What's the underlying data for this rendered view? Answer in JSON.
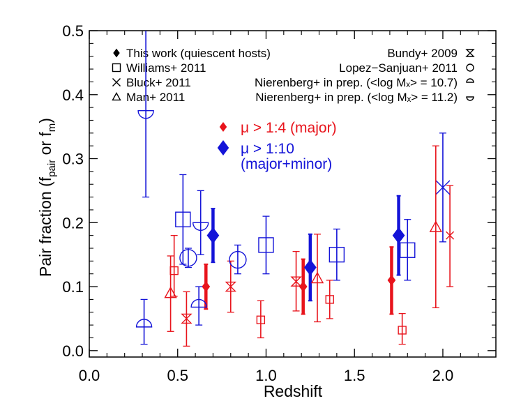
{
  "chart_data": {
    "type": "scatter",
    "xlabel": "Redshift",
    "ylabel_main": "Pair fraction (f",
    "ylabel_sub1": "pair",
    "ylabel_mid": " or f",
    "ylabel_sub2": "m",
    "ylabel_end": ")",
    "xlim": [
      0.0,
      2.3
    ],
    "ylim": [
      -0.01,
      0.5
    ],
    "xticks": [
      0.0,
      0.5,
      1.0,
      1.5,
      2.0
    ],
    "xtick_labels": [
      "0.0",
      "0.5",
      "1.0",
      "1.5",
      "2.0"
    ],
    "yticks": [
      0.0,
      0.1,
      0.2,
      0.3,
      0.4,
      0.5
    ],
    "ytick_labels": [
      "0.0",
      "0.1",
      "0.2",
      "0.3",
      "0.4",
      "0.5"
    ],
    "colors": {
      "major": "#e8141c",
      "minor": "#1414d8",
      "axis": "#000000"
    },
    "legend_left": [
      {
        "label": "This work (quiescent hosts)",
        "marker": "diamond-filled"
      },
      {
        "label": "Williams+ 2011",
        "marker": "square"
      },
      {
        "label": "Bluck+ 2011",
        "marker": "x"
      },
      {
        "label": "Man+ 2011",
        "marker": "triangle"
      }
    ],
    "legend_right": [
      {
        "label": "Bundy+ 2009",
        "marker": "hourglass"
      },
      {
        "label": "Lopez−Sanjuan+ 2011",
        "marker": "circle"
      },
      {
        "label": "Nierenberg+ in prep. (<log Mₓ> = 10.7)",
        "marker": "half-circle-top"
      },
      {
        "label": "Nierenberg+ in prep. (<log Mₓ> = 11.2)",
        "marker": "half-circle-bottom"
      }
    ],
    "annotations": [
      {
        "text": "μ > 1:4 (major)",
        "color": "major",
        "marker": "diamond-small"
      },
      {
        "text": "μ > 1:10",
        "color": "minor",
        "marker": "diamond-large"
      },
      {
        "text": "(major+minor)",
        "color": "minor",
        "marker": ""
      }
    ],
    "series": [
      {
        "name": "This work μ > 1:4",
        "marker": "diamond-filled",
        "color": "major",
        "size": 14,
        "thick": true,
        "points": [
          {
            "x": 0.66,
            "y": 0.1,
            "lo": 0.065,
            "hi": 0.135
          },
          {
            "x": 1.21,
            "y": 0.1,
            "lo": 0.057,
            "hi": 0.143
          },
          {
            "x": 1.71,
            "y": 0.11,
            "lo": 0.057,
            "hi": 0.162
          }
        ]
      },
      {
        "name": "This work μ > 1:10",
        "marker": "diamond-filled",
        "color": "minor",
        "size": 22,
        "thick": true,
        "points": [
          {
            "x": 0.7,
            "y": 0.18,
            "lo": 0.138,
            "hi": 0.222
          },
          {
            "x": 1.25,
            "y": 0.13,
            "lo": 0.078,
            "hi": 0.182
          },
          {
            "x": 1.75,
            "y": 0.18,
            "lo": 0.118,
            "hi": 0.242
          }
        ]
      },
      {
        "name": "Williams+ 2011 major",
        "marker": "square",
        "color": "major",
        "size": 11,
        "points": [
          {
            "x": 0.48,
            "y": 0.125,
            "lo": 0.085,
            "hi": 0.18
          },
          {
            "x": 0.97,
            "y": 0.048,
            "lo": 0.02,
            "hi": 0.078
          },
          {
            "x": 1.36,
            "y": 0.08,
            "lo": 0.05,
            "hi": 0.11
          },
          {
            "x": 1.77,
            "y": 0.032,
            "lo": 0.01,
            "hi": 0.058
          }
        ]
      },
      {
        "name": "Williams+ 2011 minor",
        "marker": "square",
        "color": "minor",
        "size": 21,
        "points": [
          {
            "x": 0.53,
            "y": 0.205,
            "lo": 0.135,
            "hi": 0.275
          },
          {
            "x": 1.0,
            "y": 0.165,
            "lo": 0.12,
            "hi": 0.21
          },
          {
            "x": 1.4,
            "y": 0.15,
            "lo": 0.11,
            "hi": 0.19
          },
          {
            "x": 1.8,
            "y": 0.157,
            "lo": 0.11,
            "hi": 0.205
          }
        ]
      },
      {
        "name": "Bluck+ 2011 major",
        "marker": "x",
        "color": "major",
        "size": 11,
        "points": [
          {
            "x": 2.04,
            "y": 0.18,
            "lo": 0.1,
            "hi": 0.258
          }
        ]
      },
      {
        "name": "Bluck+ 2011 minor",
        "marker": "x",
        "color": "minor",
        "size": 20,
        "points": [
          {
            "x": 2.0,
            "y": 0.255,
            "lo": 0.17,
            "hi": 0.34
          }
        ]
      },
      {
        "name": "Man+ 2011 major",
        "marker": "triangle",
        "color": "major",
        "size": 16,
        "points": [
          {
            "x": 0.46,
            "y": 0.09,
            "lo": 0.03,
            "hi": 0.148
          },
          {
            "x": 1.29,
            "y": 0.113,
            "lo": 0.045,
            "hi": 0.182
          },
          {
            "x": 1.96,
            "y": 0.193,
            "lo": 0.067,
            "hi": 0.32
          }
        ]
      },
      {
        "name": "Bundy+ 2009",
        "marker": "hourglass",
        "color": "major",
        "size": 13,
        "points": [
          {
            "x": 0.55,
            "y": 0.05,
            "lo": 0.007,
            "hi": 0.092
          },
          {
            "x": 0.8,
            "y": 0.1,
            "lo": 0.06,
            "hi": 0.14
          },
          {
            "x": 1.17,
            "y": 0.108,
            "lo": 0.062,
            "hi": 0.155
          }
        ]
      },
      {
        "name": "Lopez−Sanjuan+ 2011",
        "marker": "circle",
        "color": "minor",
        "size": 24,
        "points": [
          {
            "x": 0.56,
            "y": 0.145,
            "lo": 0.13,
            "hi": 0.16
          },
          {
            "x": 0.84,
            "y": 0.142,
            "lo": 0.12,
            "hi": 0.165
          }
        ]
      },
      {
        "name": "Nierenberg+ 10.7",
        "marker": "half-circle-top",
        "color": "minor",
        "size": 22,
        "points": [
          {
            "x": 0.31,
            "y": 0.037,
            "lo": 0.01,
            "hi": 0.08
          },
          {
            "x": 0.62,
            "y": 0.068,
            "lo": 0.04,
            "hi": 0.1
          }
        ]
      },
      {
        "name": "Nierenberg+ 11.2",
        "marker": "half-circle-bottom",
        "color": "minor",
        "size": 22,
        "points": [
          {
            "x": 0.32,
            "y": 0.375,
            "lo": 0.24,
            "hi": 0.5
          },
          {
            "x": 0.63,
            "y": 0.2,
            "lo": 0.15,
            "hi": 0.25
          }
        ]
      }
    ]
  }
}
